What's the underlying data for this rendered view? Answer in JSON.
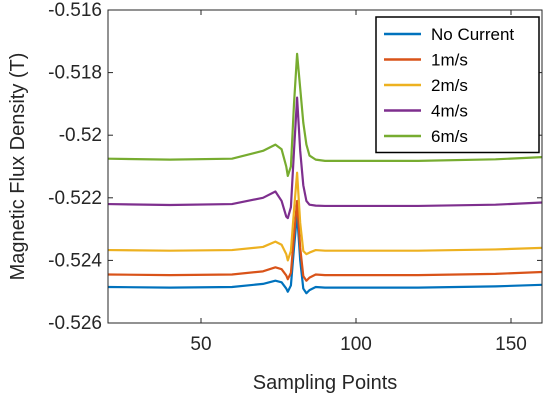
{
  "chart_data": {
    "type": "line",
    "title": "",
    "xlabel": "Sampling Points",
    "ylabel": "Magnetic Flux Density (T)",
    "xlim": [
      20,
      160
    ],
    "ylim": [
      -0.526,
      -0.516
    ],
    "xticks": [
      50,
      100,
      150
    ],
    "yticks": [
      -0.526,
      -0.524,
      -0.522,
      -0.52,
      -0.518,
      -0.516
    ],
    "ytick_labels": [
      "-0.526",
      "-0.524",
      "-0.522",
      "-0.52",
      "-0.518",
      "-0.516"
    ],
    "grid": false,
    "legend_position": "top-right",
    "series": [
      {
        "name": "No Current",
        "color": "#0072BD",
        "points": [
          [
            20,
            -0.52485
          ],
          [
            40,
            -0.52487
          ],
          [
            60,
            -0.52485
          ],
          [
            70,
            -0.52475
          ],
          [
            74,
            -0.52465
          ],
          [
            76,
            -0.5247
          ],
          [
            77.5,
            -0.5249
          ],
          [
            78,
            -0.525
          ],
          [
            79,
            -0.5248
          ],
          [
            80,
            -0.5236
          ],
          [
            81,
            -0.5225
          ],
          [
            82,
            -0.524
          ],
          [
            83,
            -0.5249
          ],
          [
            84,
            -0.52505
          ],
          [
            85,
            -0.52495
          ],
          [
            87,
            -0.52485
          ],
          [
            90,
            -0.52487
          ],
          [
            120,
            -0.52487
          ],
          [
            145,
            -0.52483
          ],
          [
            160,
            -0.52478
          ]
        ]
      },
      {
        "name": "1m/s",
        "color": "#D95319",
        "points": [
          [
            20,
            -0.52445
          ],
          [
            40,
            -0.52447
          ],
          [
            60,
            -0.52445
          ],
          [
            70,
            -0.52435
          ],
          [
            74,
            -0.52422
          ],
          [
            76,
            -0.52428
          ],
          [
            77.5,
            -0.52448
          ],
          [
            78,
            -0.5246
          ],
          [
            79,
            -0.5244
          ],
          [
            80,
            -0.5232
          ],
          [
            81,
            -0.5221
          ],
          [
            82,
            -0.5236
          ],
          [
            83,
            -0.5245
          ],
          [
            84,
            -0.52465
          ],
          [
            85,
            -0.52455
          ],
          [
            87,
            -0.52445
          ],
          [
            90,
            -0.52447
          ],
          [
            120,
            -0.52447
          ],
          [
            145,
            -0.52443
          ],
          [
            160,
            -0.52437
          ]
        ]
      },
      {
        "name": "2m/s",
        "color": "#EDB120",
        "points": [
          [
            20,
            -0.52367
          ],
          [
            40,
            -0.52369
          ],
          [
            60,
            -0.52367
          ],
          [
            70,
            -0.52357
          ],
          [
            74,
            -0.5234
          ],
          [
            76,
            -0.5235
          ],
          [
            77.5,
            -0.5238
          ],
          [
            78,
            -0.524
          ],
          [
            79,
            -0.5237
          ],
          [
            80,
            -0.5224
          ],
          [
            81,
            -0.5212
          ],
          [
            82,
            -0.5228
          ],
          [
            83,
            -0.5237
          ],
          [
            84,
            -0.5238
          ],
          [
            85,
            -0.52375
          ],
          [
            87,
            -0.52367
          ],
          [
            90,
            -0.52369
          ],
          [
            120,
            -0.52369
          ],
          [
            145,
            -0.52365
          ],
          [
            160,
            -0.5236
          ]
        ]
      },
      {
        "name": "4m/s",
        "color": "#7E2F8E",
        "points": [
          [
            20,
            -0.5222
          ],
          [
            40,
            -0.52223
          ],
          [
            60,
            -0.5222
          ],
          [
            70,
            -0.522
          ],
          [
            74,
            -0.5218
          ],
          [
            76,
            -0.5221
          ],
          [
            77.5,
            -0.5226
          ],
          [
            78,
            -0.52265
          ],
          [
            79,
            -0.5223
          ],
          [
            80,
            -0.5205
          ],
          [
            81,
            -0.5188
          ],
          [
            82,
            -0.5205
          ],
          [
            83,
            -0.5216
          ],
          [
            84,
            -0.5221
          ],
          [
            85,
            -0.52222
          ],
          [
            87,
            -0.52225
          ],
          [
            90,
            -0.52226
          ],
          [
            120,
            -0.52226
          ],
          [
            145,
            -0.52222
          ],
          [
            160,
            -0.52215
          ]
        ]
      },
      {
        "name": "6m/s",
        "color": "#77AC30",
        "points": [
          [
            20,
            -0.52075
          ],
          [
            40,
            -0.52078
          ],
          [
            60,
            -0.52075
          ],
          [
            70,
            -0.5205
          ],
          [
            74,
            -0.5203
          ],
          [
            76,
            -0.52045
          ],
          [
            77.5,
            -0.521
          ],
          [
            78,
            -0.5213
          ],
          [
            79,
            -0.521
          ],
          [
            80,
            -0.519
          ],
          [
            81,
            -0.5174
          ],
          [
            82,
            -0.5185
          ],
          [
            83,
            -0.5196
          ],
          [
            84,
            -0.5203
          ],
          [
            85,
            -0.52065
          ],
          [
            87,
            -0.52078
          ],
          [
            90,
            -0.52082
          ],
          [
            120,
            -0.52082
          ],
          [
            145,
            -0.52077
          ],
          [
            160,
            -0.5207
          ]
        ]
      }
    ]
  }
}
